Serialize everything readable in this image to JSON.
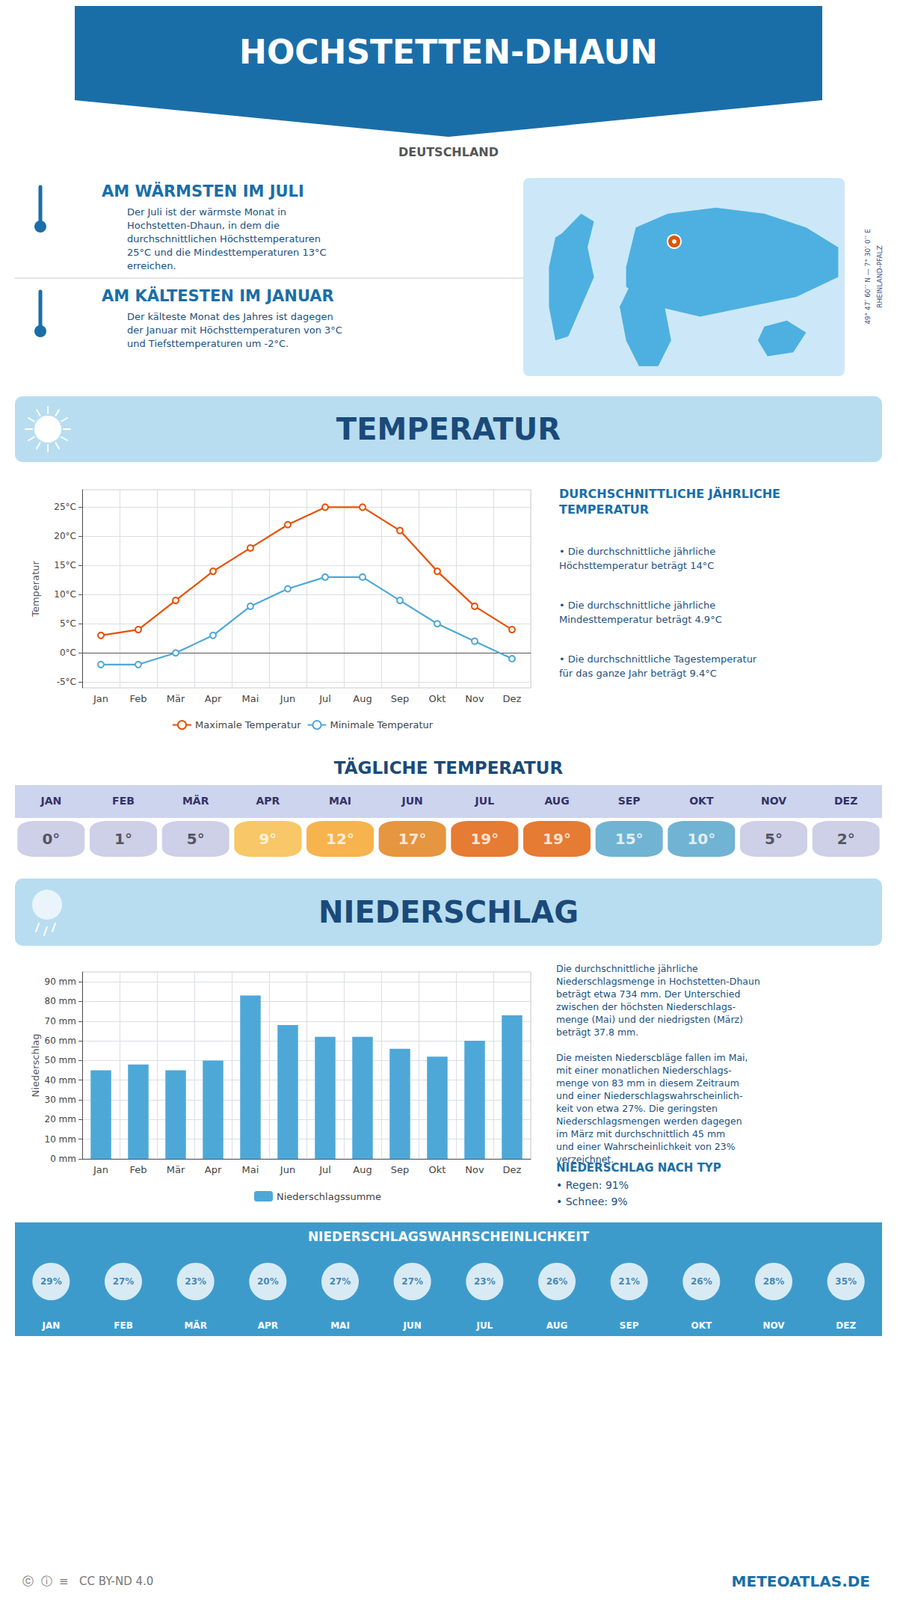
{
  "title": "HOCHSTETTEN-DHAUN",
  "subtitle": "DEUTSCHLAND",
  "annotations": [
    "AM WÄRMSTEN IM JULI",
    "Der Juli ist der wärmste Monat in\nHochstetten-Dhaun, in dem die\ndurchschnittlichen Höchsttemperaturen\n25°C und die Mindesttemperaturen 13°C\nerreichen.",
    "AM KÄLTESTEN IM JANUAR",
    "Der kälteste Monat des Jahres ist dagegen\nder Januar mit Höchsttemperaturen von 3°C\nund Tiefsttemperaturen um -2°C.",
    "49° 47’ 60’’ N — 7° 30’ 0’’ E\nRHEINLAND-PFALZ",
    "ⓒ  ⓘ  ≡   CC BY-ND 4.0",
    "METEOATLAS.DE"
  ],
  "chart_data": [
    {
      "type": "line",
      "title": "TEMPERATUR",
      "ylabel": "Temperatur",
      "categories": [
        "Jan",
        "Feb",
        "Mär",
        "Apr",
        "Mai",
        "Jun",
        "Jul",
        "Aug",
        "Sep",
        "Okt",
        "Nov",
        "Dez"
      ],
      "series": [
        {
          "name": "Maximale Temperatur",
          "color": "#e85000",
          "marker": "circle",
          "values": [
            3,
            4,
            9,
            14,
            18,
            22,
            25,
            25,
            21,
            14,
            8,
            4
          ]
        },
        {
          "name": "Minimale Temperatur",
          "color": "#4da8d8",
          "marker": "circle",
          "values": [
            -2,
            -2,
            0,
            3,
            8,
            11,
            13,
            13,
            9,
            5,
            2,
            -1
          ]
        }
      ],
      "ylim": [
        -6,
        28
      ],
      "yticks": [
        {
          "value": -5,
          "label": "-5°C"
        },
        {
          "value": 0,
          "label": "0°C"
        },
        {
          "value": 5,
          "label": "5°C"
        },
        {
          "value": 10,
          "label": "10°C"
        },
        {
          "value": 15,
          "label": "15°C"
        },
        {
          "value": 20,
          "label": "20°C"
        },
        {
          "value": 25,
          "label": "25°C"
        }
      ],
      "grid": true,
      "legend": "bottom",
      "annotations": [
        "DURCHSCHNITTLICHE JÄHRLICHE\nTEMPERATUR",
        "• Die durchschnittliche jährliche\nHöchsttemperatur beträgt 14°C",
        "• Die durchschnittliche jährliche\nMindesttemperatur beträgt 4.9°C",
        "• Die durchschnittliche Tagestemperatur\nfür das ganze Jahr beträgt 9.4°C"
      ]
    },
    {
      "type": "table",
      "title": "TÄGLICHE TEMPERATUR",
      "categories": [
        "JAN",
        "FEB",
        "MÄR",
        "APR",
        "MAI",
        "JUN",
        "JUL",
        "AUG",
        "SEP",
        "OKT",
        "NOV",
        "DEZ"
      ],
      "values": [
        0,
        1,
        5,
        9,
        12,
        17,
        19,
        19,
        15,
        10,
        5,
        2
      ],
      "value_labels": [
        "0°",
        "1°",
        "5°",
        "9°",
        "12°",
        "17°",
        "19°",
        "19°",
        "15°",
        "10°",
        "5°",
        "2°"
      ],
      "colors": [
        "#c0c4e0",
        "#c0c4e0",
        "#c0c4e0",
        "#f5b942",
        "#f5a020",
        "#e07b10",
        "#e05a00",
        "#e05a00",
        "#4da0c8",
        "#4da0c8",
        "#c0c4e0",
        "#c0c4e0"
      ],
      "data_labels": true
    },
    {
      "type": "bar",
      "title": "NIEDERSCHLAG",
      "ylabel": "Niederschlag",
      "categories": [
        "Jan",
        "Feb",
        "Mär",
        "Apr",
        "Mai",
        "Jun",
        "Jul",
        "Aug",
        "Sep",
        "Okt",
        "Nov",
        "Dez"
      ],
      "series": [
        {
          "name": "Niederschlagssumme",
          "color": "#4da8d8",
          "values": [
            45,
            48,
            45,
            50,
            83,
            68,
            62,
            62,
            56,
            52,
            60,
            73
          ]
        }
      ],
      "ylim": [
        0,
        95
      ],
      "yticks": [
        {
          "value": 0,
          "label": "0 mm"
        },
        {
          "value": 10,
          "label": "10 mm"
        },
        {
          "value": 20,
          "label": "20 mm"
        },
        {
          "value": 30,
          "label": "30 mm"
        },
        {
          "value": 40,
          "label": "40 mm"
        },
        {
          "value": 50,
          "label": "50 mm"
        },
        {
          "value": 60,
          "label": "60 mm"
        },
        {
          "value": 70,
          "label": "70 mm"
        },
        {
          "value": 80,
          "label": "80 mm"
        },
        {
          "value": 90,
          "label": "90 mm"
        }
      ],
      "grid": true,
      "legend": "bottom",
      "annotations": [
        "Die durchschnittliche jährliche\nNiederschlagsmenge in Hochstetten-Dhaun\nbeträgt etwa 734 mm. Der Unterschied\nzwischen der höchsten Niederschlags-\nmenge (Mai) und der niedrigsten (März)\nbeträgt 37.8 mm.\n\nDie meisten Niederscbläge fallen im Mai,\nmit einer monatlichen Niederschlags-\nmenge von 83 mm in diesem Zeitraum\nund einer Niederschlagswahrscheinlich-\nkeit von etwa 27%. Die geringsten\nNiederschlagsmengen werden dagegen\nim März mit durchschnittlich 45 mm\nund einer Wahrscheinlichkeit von 23%\nverzeichnet.",
        "NIEDERSCHLAG NACH TYP",
        "• Regen: 91%",
        "• Schnee: 9%"
      ]
    },
    {
      "type": "table",
      "title": "NIEDERSCHLAGSWAHRSCHEINLICHKEIT",
      "categories": [
        "JAN",
        "FEB",
        "MÄR",
        "APR",
        "MAI",
        "JUN",
        "JUL",
        "AUG",
        "SEP",
        "OKT",
        "NOV",
        "DEZ"
      ],
      "values": [
        29,
        27,
        23,
        20,
        27,
        27,
        23,
        26,
        21,
        26,
        28,
        35
      ],
      "value_labels": [
        "29%",
        "27%",
        "23%",
        "20%",
        "27%",
        "27%",
        "23%",
        "26%",
        "21%",
        "26%",
        "28%",
        "35%"
      ],
      "data_labels": true
    }
  ]
}
